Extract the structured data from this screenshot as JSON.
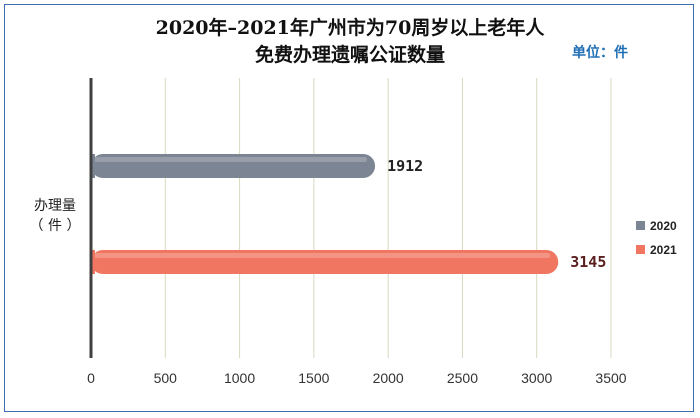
{
  "chart_data": {
    "type": "bar",
    "orientation": "horizontal",
    "title_line1": "2020年–2021年广州市为70周岁以上老年人",
    "title_line2": "免费办理遗嘱公证数量",
    "unit_label": "单位：件",
    "ylabel_line1": "办理量",
    "ylabel_line2": "（ 件 ）",
    "xlim": [
      0,
      3500
    ],
    "xticks": [
      "0",
      "500",
      "1000",
      "1500",
      "2000",
      "2500",
      "3000",
      "3500"
    ],
    "grid": true,
    "legend_position": "right",
    "series": [
      {
        "name": "2020",
        "value": 1912,
        "label": "1912",
        "color": "#7b8593",
        "label_color": "#222222"
      },
      {
        "name": "2021",
        "value": 3145,
        "label": "3145",
        "color": "#f07662",
        "label_color": "#5a2020"
      }
    ],
    "colors": {
      "axis": "#404040",
      "grid": "#d9d9c0",
      "border": "#3c6fb4",
      "unit": "#1f6fb5"
    }
  }
}
